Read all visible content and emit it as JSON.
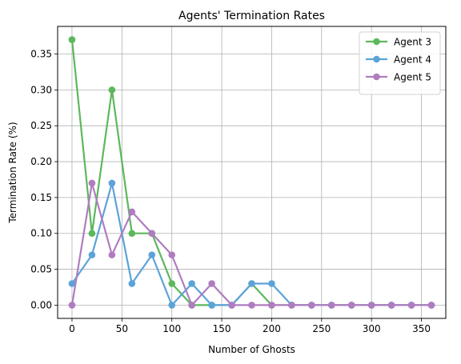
{
  "chart_data": {
    "type": "line",
    "title": "Agents' Termination Rates",
    "xlabel": "Number of Ghosts",
    "ylabel": "Termination Rate (%)",
    "xlim": [
      -14.4,
      374.4
    ],
    "ylim": [
      -0.0185,
      0.3885
    ],
    "xticks": [
      0,
      50,
      100,
      150,
      200,
      250,
      300,
      350
    ],
    "xtick_labels": [
      "0",
      "50",
      "100",
      "150",
      "200",
      "250",
      "300",
      "350"
    ],
    "yticks": [
      0.0,
      0.05,
      0.1,
      0.15,
      0.2,
      0.25,
      0.3,
      0.35
    ],
    "ytick_labels": [
      "0.00",
      "0.05",
      "0.10",
      "0.15",
      "0.20",
      "0.25",
      "0.30",
      "0.35"
    ],
    "grid": true,
    "legend_position": "top-right",
    "x": [
      0,
      20,
      40,
      60,
      80,
      100,
      120,
      140,
      160,
      180,
      200,
      220,
      240,
      260,
      280,
      300,
      320,
      340,
      360
    ],
    "series": [
      {
        "name": "Agent 3",
        "color": "#5cb85c",
        "values": [
          0.37,
          0.1,
          0.3,
          0.1,
          0.1,
          0.03,
          0.0,
          0.0,
          0.0,
          0.03,
          0.0,
          0.0,
          0.0,
          0.0,
          0.0,
          0.0,
          0.0,
          0.0,
          0.0
        ]
      },
      {
        "name": "Agent 4",
        "color": "#5ba3d9",
        "values": [
          0.03,
          0.07,
          0.17,
          0.03,
          0.07,
          0.0,
          0.03,
          0.0,
          0.0,
          0.03,
          0.03,
          0.0,
          0.0,
          0.0,
          0.0,
          0.0,
          0.0,
          0.0,
          0.0
        ]
      },
      {
        "name": "Agent 5",
        "color": "#b07cc0",
        "values": [
          0.0,
          0.17,
          0.07,
          0.13,
          0.1,
          0.07,
          0.0,
          0.03,
          0.0,
          0.0,
          0.0,
          0.0,
          0.0,
          0.0,
          0.0,
          0.0,
          0.0,
          0.0,
          0.0
        ]
      }
    ]
  }
}
